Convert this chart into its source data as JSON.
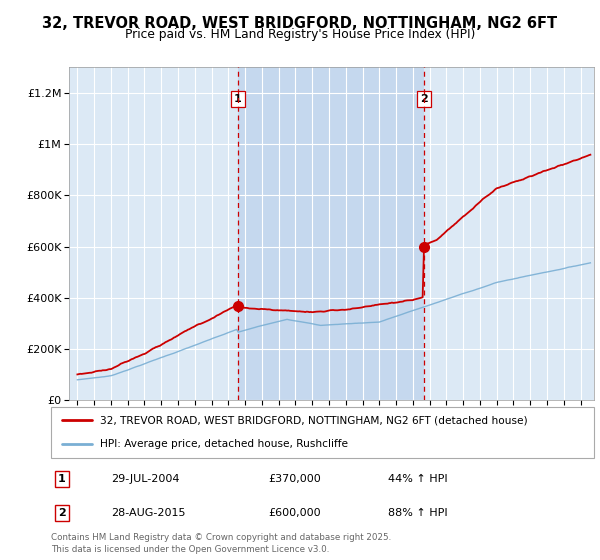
{
  "title_line1": "32, TREVOR ROAD, WEST BRIDGFORD, NOTTINGHAM, NG2 6FT",
  "title_line2": "Price paid vs. HM Land Registry's House Price Index (HPI)",
  "background_color": "#dce9f5",
  "highlight_color": "#c5d8ee",
  "red_line_color": "#cc0000",
  "blue_line_color": "#7aafd4",
  "dashed_line_color": "#cc0000",
  "ylim": [
    0,
    1300000
  ],
  "yticks": [
    0,
    200000,
    400000,
    600000,
    800000,
    1000000,
    1200000
  ],
  "sale1_date": "29-JUL-2004",
  "sale1_price": 370000,
  "sale1_pct": "44%",
  "sale1_x": 2004.57,
  "sale2_date": "28-AUG-2015",
  "sale2_price": 600000,
  "sale2_pct": "88%",
  "sale2_x": 2015.66,
  "legend_line1": "32, TREVOR ROAD, WEST BRIDGFORD, NOTTINGHAM, NG2 6FT (detached house)",
  "legend_line2": "HPI: Average price, detached house, Rushcliffe",
  "footer": "Contains HM Land Registry data © Crown copyright and database right 2025.\nThis data is licensed under the Open Government Licence v3.0.",
  "xlim_min": 1994.5,
  "xlim_max": 2025.8
}
